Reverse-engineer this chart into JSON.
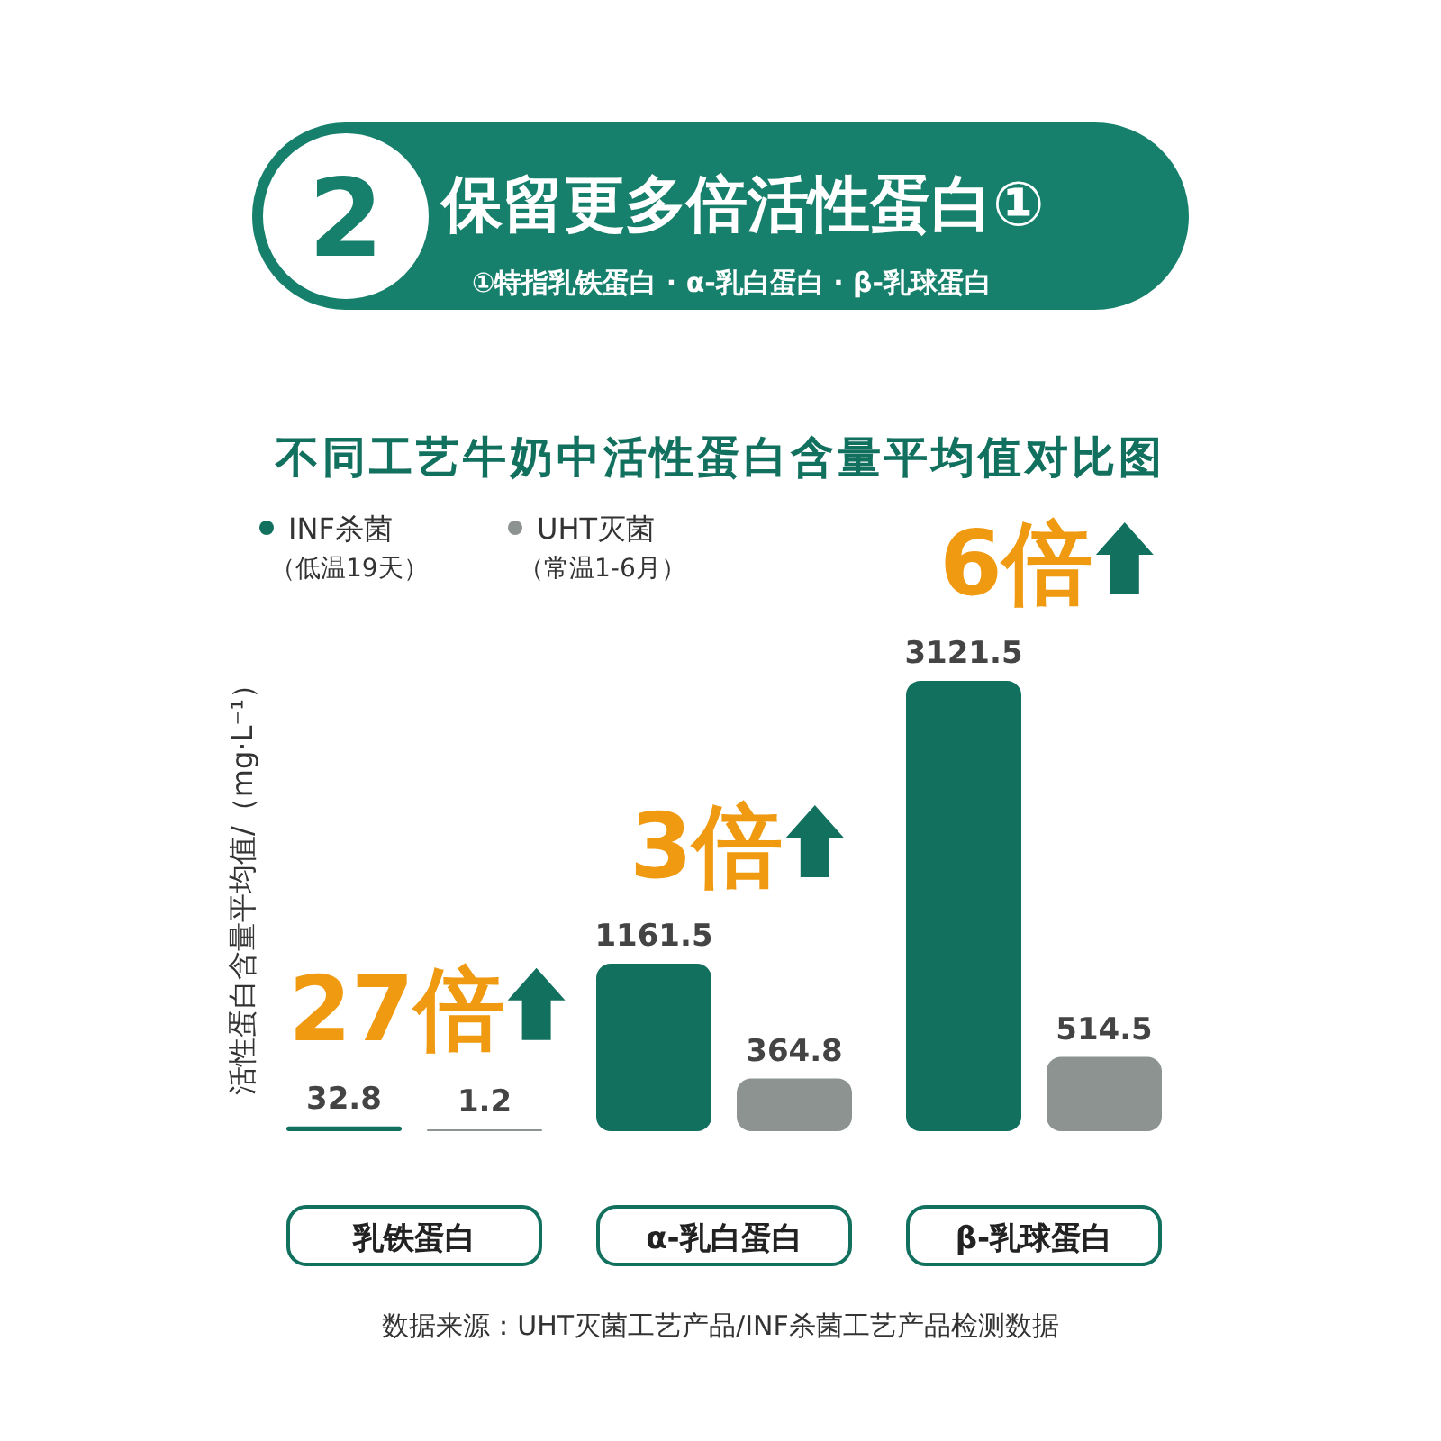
{
  "chart_data": {
    "type": "bar",
    "title": "不同工艺牛奶中活性蛋白含量平均值对比图",
    "ylabel": "活性蛋白含量平均值/（mg·L⁻¹）",
    "categories": [
      "乳铁蛋白",
      "α-乳白蛋白",
      "β-乳球蛋白"
    ],
    "series": [
      {
        "name": "INF杀菌（低温19天）",
        "color": "#12705f",
        "values": [
          32.8,
          1161.5,
          3121.5
        ]
      },
      {
        "name": "UHT灭菌（常温1-6月）",
        "color": "#8c9391",
        "values": [
          1.2,
          364.8,
          514.5
        ]
      }
    ],
    "data_labels": true,
    "legend": "top left",
    "annotations": [
      "2",
      "保留更多倍活性蛋白①",
      "①特指乳铁蛋白 · α-乳白蛋白 · β-乳球蛋白",
      "数据来源：UHT灭菌工艺产品/INF杀菌工艺产品检测数据",
      "27倍",
      "3倍",
      "6倍"
    ]
  }
}
